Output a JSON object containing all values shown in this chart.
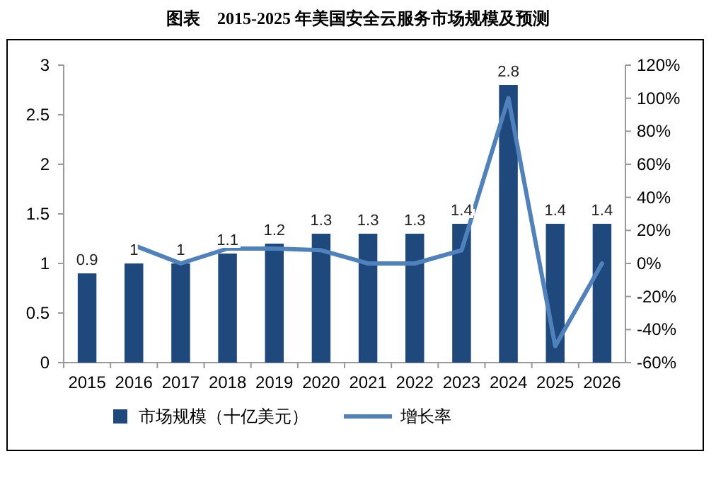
{
  "chart_data": {
    "type": "bar",
    "title": "图表　2015-2025 年美国安全云服务市场规模及预测",
    "categories": [
      "2015",
      "2016",
      "2017",
      "2018",
      "2019",
      "2020",
      "2021",
      "2022",
      "2023",
      "2024",
      "2025",
      "2026"
    ],
    "series": [
      {
        "name": "市场规模（十亿美元）",
        "color": "#1f497d",
        "values": [
          0.9,
          1,
          1,
          1.1,
          1.2,
          1.3,
          1.3,
          1.3,
          1.4,
          2.8,
          1.4,
          1.4
        ],
        "value_labels": [
          "0.9",
          "1",
          "1",
          "1.1",
          "1.2",
          "1.3",
          "1.3",
          "1.3",
          "1.4",
          "2.8",
          "1.4",
          "1.4"
        ]
      },
      {
        "name": "增长率",
        "type": "line",
        "axis": "y2",
        "color": "#4f81bd",
        "values": [
          null,
          11,
          0,
          9,
          9,
          8,
          0,
          0,
          8,
          100,
          -50,
          0
        ]
      }
    ],
    "ylim": [
      0,
      3
    ],
    "yticks": [
      0,
      0.5,
      1,
      1.5,
      2,
      2.5,
      3
    ],
    "y2lim": [
      -60,
      120
    ],
    "y2ticks": [
      {
        "value": -60,
        "label": "-60%"
      },
      {
        "value": -40,
        "label": "-40%"
      },
      {
        "value": -20,
        "label": "-20%"
      },
      {
        "value": 0,
        "label": "0%"
      },
      {
        "value": 20,
        "label": "20%"
      },
      {
        "value": 40,
        "label": "40%"
      },
      {
        "value": 60,
        "label": "60%"
      },
      {
        "value": 80,
        "label": "80%"
      },
      {
        "value": 100,
        "label": "100%"
      },
      {
        "value": 120,
        "label": "120%"
      }
    ],
    "legend": "bottom",
    "marker": "none",
    "line_style": "solid"
  }
}
